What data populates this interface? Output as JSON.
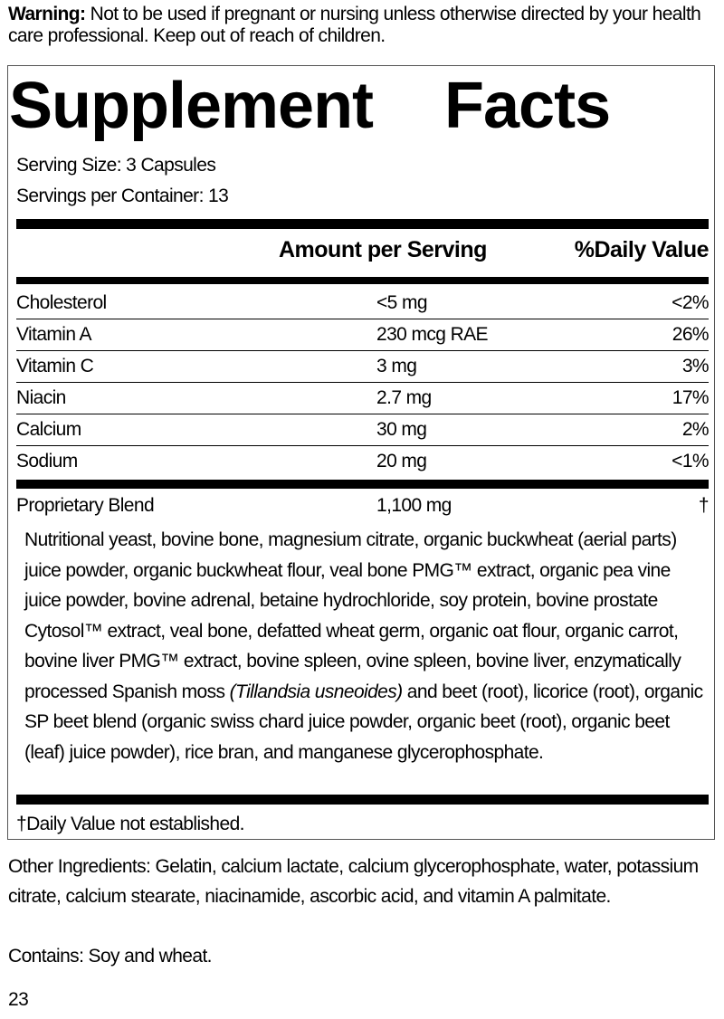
{
  "warning": {
    "label": "Warning:",
    "text": " Not to be used if pregnant or nursing unless otherwise directed by your health care professional. Keep out of reach of children."
  },
  "title": "Supplement Facts",
  "serving_size": "Serving Size: 3 Capsules",
  "servings_per_container": "Servings per Container: 13",
  "headers": {
    "amount": "Amount per Serving",
    "dv": "%Daily Value"
  },
  "nutrients": [
    {
      "name": "Cholesterol",
      "amount": "<5 mg",
      "dv": "<2%"
    },
    {
      "name": "Vitamin A",
      "amount": "230 mcg RAE",
      "dv": "26%"
    },
    {
      "name": "Vitamin C",
      "amount": "3 mg",
      "dv": "3%"
    },
    {
      "name": "Niacin",
      "amount": "2.7 mg",
      "dv": "17%"
    },
    {
      "name": "Calcium",
      "amount": "30 mg",
      "dv": "2%"
    },
    {
      "name": "Sodium",
      "amount": "20 mg",
      "dv": "<1%"
    }
  ],
  "blend": {
    "name": "Proprietary Blend",
    "amount": "1,100 mg",
    "dv": "†",
    "text_a": "Nutritional yeast, bovine bone, magnesium citrate, organic buckwheat (aerial parts) juice powder, organic buckwheat flour, veal bone PMG™ extract, organic pea vine juice powder, bovine adrenal, betaine hydrochloride, soy protein, bovine prostate Cytosol™ extract, veal bone, defatted wheat germ, organic oat flour,  organic carrot, bovine liver PMG™ extract, bovine spleen, ovine spleen, bovine liver, enzymatically processed Spanish moss ",
    "text_italic": "(Tillandsia usneoides)",
    "text_b": " and beet (root), licorice (root), organic SP beet blend (organic swiss chard juice powder, organic beet (root), organic beet (leaf) juice powder), rice bran, and manganese glycerophosphate."
  },
  "footnote": "†Daily Value not established.",
  "other_ingredients": "Other Ingredients: Gelatin, calcium lactate, calcium glycerophosphate, water, potassium citrate, calcium stearate, niacinamide, ascorbic acid, and vitamin A palmitate.",
  "contains": "Contains: Soy and wheat.",
  "page_number": "23"
}
